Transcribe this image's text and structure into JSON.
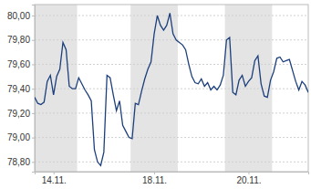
{
  "chart_data": {
    "type": "line",
    "categories": [
      null,
      null,
      null,
      null,
      null,
      null,
      "14.11.",
      null,
      null,
      null,
      null,
      null,
      null,
      null,
      null,
      null,
      null,
      null,
      null,
      null,
      null,
      null,
      null,
      null,
      null,
      null,
      null,
      null,
      null,
      null,
      null,
      null,
      null,
      null,
      null,
      null,
      null,
      null,
      "18.11.",
      null,
      null,
      null,
      null,
      null,
      null,
      null,
      null,
      null,
      null,
      null,
      null,
      null,
      null,
      null,
      null,
      null,
      null,
      null,
      null,
      null,
      null,
      null,
      null,
      null,
      null,
      null,
      null,
      null,
      "20.11.",
      null,
      null,
      null,
      null,
      null,
      null,
      null,
      null,
      null,
      null,
      null,
      null,
      null,
      null,
      null,
      null,
      null,
      null,
      null
    ],
    "series": [
      {
        "color": "#1c3f7c",
        "values": [
          79.33,
          79.28,
          79.27,
          79.29,
          79.46,
          79.51,
          79.35,
          79.5,
          79.56,
          79.78,
          79.72,
          79.42,
          79.4,
          79.4,
          79.49,
          79.44,
          79.39,
          79.35,
          79.3,
          78.9,
          78.8,
          78.77,
          78.88,
          79.51,
          79.49,
          79.35,
          79.22,
          79.3,
          79.1,
          79.05,
          79.0,
          78.99,
          79.28,
          79.27,
          79.38,
          79.48,
          79.56,
          79.62,
          79.85,
          80.0,
          79.92,
          79.88,
          79.92,
          80.02,
          79.85,
          79.8,
          79.78,
          79.76,
          79.72,
          79.6,
          79.5,
          79.45,
          79.44,
          79.48,
          79.42,
          79.45,
          79.39,
          79.42,
          79.39,
          79.43,
          79.51,
          79.8,
          79.82,
          79.37,
          79.35,
          79.47,
          79.51,
          79.42,
          79.46,
          79.49,
          79.63,
          79.67,
          79.44,
          79.34,
          79.33,
          79.47,
          79.54,
          79.65,
          79.66,
          79.62,
          79.63,
          79.64,
          79.55,
          79.46,
          79.39,
          79.46,
          79.43,
          79.37
        ]
      }
    ],
    "ylim": [
      78.72,
      80.09
    ],
    "yticks": [
      {
        "value": 78.8,
        "label": "78,80"
      },
      {
        "value": 79,
        "label": "79,00"
      },
      {
        "value": 79.2,
        "label": "79,20"
      },
      {
        "value": 79.4,
        "label": "79,40"
      },
      {
        "value": 79.6,
        "label": "79,60"
      },
      {
        "value": 79.8,
        "label": "79,80"
      },
      {
        "value": 80,
        "label": "80,00"
      }
    ],
    "grid": true
  }
}
